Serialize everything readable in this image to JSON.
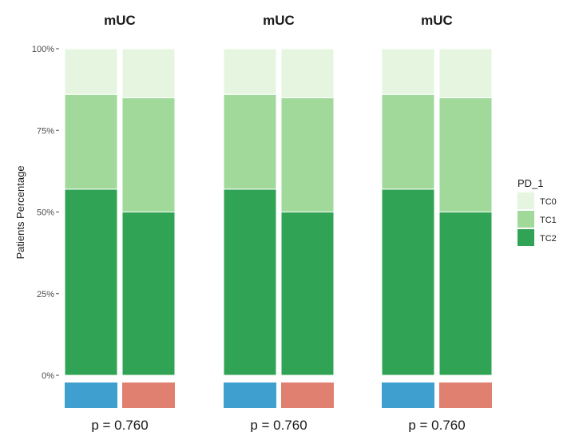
{
  "chart_data": {
    "type": "bar",
    "stacked": true,
    "percent": true,
    "ylabel": "Patients Percentage",
    "ylim": [
      0,
      100
    ],
    "yticks": [
      "0%",
      "25%",
      "50%",
      "75%",
      "100%"
    ],
    "grid": false,
    "legend": {
      "title": "PD_1",
      "position": "right",
      "entries": [
        {
          "name": "TC0",
          "color": "#e5f5e0"
        },
        {
          "name": "TC1",
          "color": "#a1d99b"
        },
        {
          "name": "TC2",
          "color": "#31a354"
        }
      ]
    },
    "group_strip_colors": [
      "#3fa0d0",
      "#e08070"
    ],
    "panels": [
      {
        "title": "mUC",
        "p_value_text": "p = 0.760",
        "bars": [
          {
            "TC2": 57,
            "TC1": 29,
            "TC0": 14
          },
          {
            "TC2": 50,
            "TC1": 35,
            "TC0": 15
          }
        ]
      },
      {
        "title": "mUC",
        "p_value_text": "p = 0.760",
        "bars": [
          {
            "TC2": 57,
            "TC1": 29,
            "TC0": 14
          },
          {
            "TC2": 50,
            "TC1": 35,
            "TC0": 15
          }
        ]
      },
      {
        "title": "mUC",
        "p_value_text": "p = 0.760",
        "bars": [
          {
            "TC2": 57,
            "TC1": 29,
            "TC0": 14
          },
          {
            "TC2": 50,
            "TC1": 35,
            "TC0": 15
          }
        ]
      }
    ]
  }
}
